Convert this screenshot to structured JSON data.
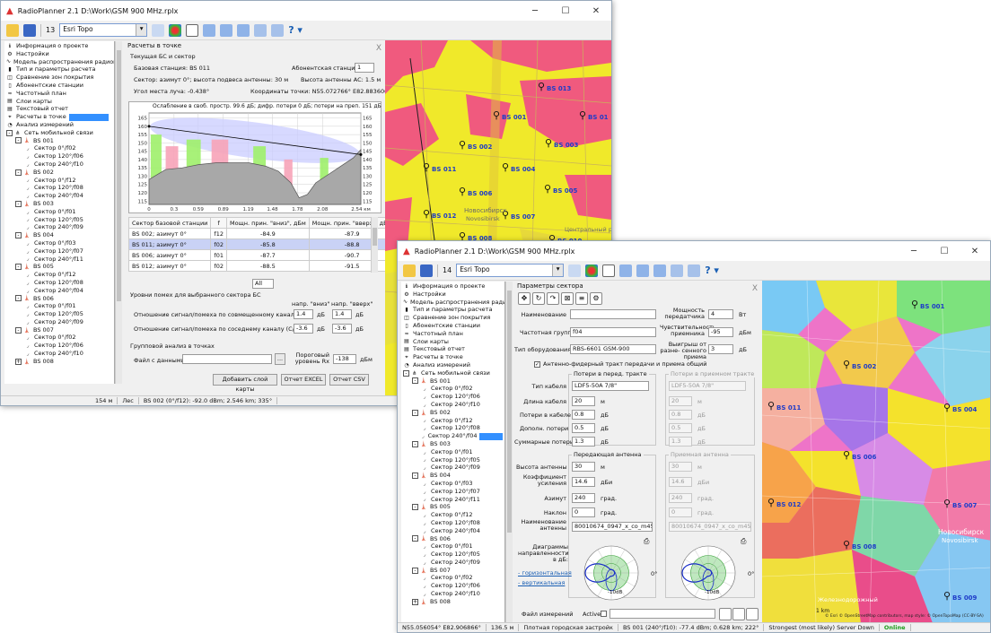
{
  "win1": {
    "title": "RadioPlanner 2.1 D:\\Work\\GSM 900 MHz.rplx",
    "zoom": "13",
    "basemap": "Esri Topo",
    "tree": [
      {
        "label": "Информация о проекте",
        "icon": "info-icon",
        "lvl": 0
      },
      {
        "label": "Настройки",
        "icon": "gear-icon",
        "lvl": 0
      },
      {
        "label": "Модель распространения радиово...",
        "icon": "propagation-model-icon",
        "lvl": 0
      },
      {
        "label": "Тип и параметры расчета",
        "icon": "bar-chart-icon",
        "lvl": 0
      },
      {
        "label": "Сравнение зон покрытия",
        "icon": "compare-icon",
        "lvl": 0
      },
      {
        "label": "Абонентские станции",
        "icon": "phone-icon",
        "lvl": 0
      },
      {
        "label": "Частотный план",
        "icon": "frequency-icon",
        "lvl": 0
      },
      {
        "label": "Слои карты",
        "icon": "layers-icon",
        "lvl": 0
      },
      {
        "label": "Текстовый отчет",
        "icon": "report-icon",
        "lvl": 0
      },
      {
        "label": "Расчеты в точке",
        "icon": "point-calc-icon",
        "lvl": 0,
        "sel": true
      },
      {
        "label": "Анализ измерений",
        "icon": "measure-icon",
        "lvl": 0
      },
      {
        "label": "Сеть мобильной связи",
        "icon": "network-icon",
        "lvl": 0,
        "exp": "-"
      },
      {
        "label": "BS 001",
        "icon": "tower-icon",
        "lvl": 1,
        "exp": "-"
      },
      {
        "label": "Сектор 0°/f02",
        "icon": "sector-icon",
        "lvl": 2
      },
      {
        "label": "Сектор 120°/f06",
        "icon": "sector-icon",
        "lvl": 2
      },
      {
        "label": "Сектор 240°/f10",
        "icon": "sector-icon",
        "lvl": 2
      },
      {
        "label": "BS 002",
        "icon": "tower-icon",
        "lvl": 1,
        "exp": "-"
      },
      {
        "label": "Сектор 0°/f12",
        "icon": "sector-icon",
        "lvl": 2
      },
      {
        "label": "Сектор 120°/f08",
        "icon": "sector-icon",
        "lvl": 2
      },
      {
        "label": "Сектор 240°/f04",
        "icon": "sector-icon",
        "lvl": 2
      },
      {
        "label": "BS 003",
        "icon": "tower-icon",
        "lvl": 1,
        "exp": "-"
      },
      {
        "label": "Сектор 0°/f01",
        "icon": "sector-icon",
        "lvl": 2
      },
      {
        "label": "Сектор 120°/f05",
        "icon": "sector-icon",
        "lvl": 2
      },
      {
        "label": "Сектор 240°/f09",
        "icon": "sector-icon",
        "lvl": 2
      },
      {
        "label": "BS 004",
        "icon": "tower-icon",
        "lvl": 1,
        "exp": "-"
      },
      {
        "label": "Сектор 0°/f03",
        "icon": "sector-icon",
        "lvl": 2
      },
      {
        "label": "Сектор 120°/f07",
        "icon": "sector-icon",
        "lvl": 2
      },
      {
        "label": "Сектор 240°/f11",
        "icon": "sector-icon",
        "lvl": 2
      },
      {
        "label": "BS 005",
        "icon": "tower-icon",
        "lvl": 1,
        "exp": "-"
      },
      {
        "label": "Сектор 0°/f12",
        "icon": "sector-icon",
        "lvl": 2
      },
      {
        "label": "Сектор 120°/f08",
        "icon": "sector-icon",
        "lvl": 2
      },
      {
        "label": "Сектор 240°/f04",
        "icon": "sector-icon",
        "lvl": 2
      },
      {
        "label": "BS 006",
        "icon": "tower-icon",
        "lvl": 1,
        "exp": "-"
      },
      {
        "label": "Сектор 0°/f01",
        "icon": "sector-icon",
        "lvl": 2
      },
      {
        "label": "Сектор 120°/f05",
        "icon": "sector-icon",
        "lvl": 2
      },
      {
        "label": "Сектор 240°/f09",
        "icon": "sector-icon",
        "lvl": 2
      },
      {
        "label": "BS 007",
        "icon": "tower-icon",
        "lvl": 1,
        "exp": "-"
      },
      {
        "label": "Сектор 0°/f02",
        "icon": "sector-icon",
        "lvl": 2
      },
      {
        "label": "Сектор 120°/f06",
        "icon": "sector-icon",
        "lvl": 2
      },
      {
        "label": "Сектор 240°/f10",
        "icon": "sector-icon",
        "lvl": 2
      },
      {
        "label": "BS 008",
        "icon": "tower-icon",
        "lvl": 1,
        "exp": "+"
      }
    ],
    "panel": {
      "header": "Расчеты в точке",
      "group_title": "Текущая БС и сектор",
      "base_station": "Базовая станция: BS 011",
      "subscriber_label": "Абонентская станция:",
      "subscriber_value": "1",
      "sector": "Сектор: азимут 0°; высота подвеса антенны: 30 м",
      "antenna_height_as": "Высота антенны АС: 1.5 м",
      "beam_angle": "Угол места луча: -0.438°",
      "coords": "Координаты точки: N55.072766° E82.883606°",
      "profile_caption": "Ослабление в своб. простр. 99.6 дБ; дифр. потери 0 дБ; потери на преп. 151 дБ",
      "table_headers": [
        "Сектор базовой станции",
        "f",
        "Мощн. прин. \"вниз\", дБм",
        "Мощн. прин. \"вверх\", дБм"
      ],
      "table_rows": [
        [
          "BS 002; азимут 0°",
          "f12",
          "-84.9",
          "-87.9"
        ],
        [
          "BS 011; азимут 0°",
          "f02",
          "-85.8",
          "-88.8"
        ],
        [
          "BS 006; азимут 0°",
          "f01",
          "-87.7",
          "-90.7"
        ],
        [
          "BS 012; азимут 0°",
          "f02",
          "-88.5",
          "-91.5"
        ]
      ],
      "filter": "All",
      "interf_title": "Уровни помех для выбранного сектора БС",
      "col_down": "напр. \"вниз\"",
      "col_up": "напр. \"вверх\"",
      "ci_label": "Отношение сигнал/помеха по совмещенному каналу (C/I)",
      "ci_down": "1.4",
      "ci_up": "1.4",
      "ca_label": "Отношение сигнал/помеха по соседнему каналу (C/A)",
      "ca_down": "-3.6",
      "ca_up": "-3.6",
      "unit_db": "дБ",
      "group_analysis": "Групповой анализ в точках",
      "file_label": "Файл с данными",
      "browse": "...",
      "threshold_label": "Пороговый уровень Rx",
      "threshold_value": "-138",
      "unit_dbm": "дБм",
      "btn_add_layer": "Добавить слой карты",
      "btn_excel": "Отчет EXCEL",
      "btn_csv": "Отчет CSV"
    },
    "status": [
      "154 м",
      "Лес",
      "BS 002 (0°/f12): -92.0 dBm; 2.546 km; 335°"
    ],
    "map_labels": [
      "BS 013",
      "BS 001",
      "BS 01",
      "BS 002",
      "BS 003",
      "BS 011",
      "BS 004",
      "BS 006",
      "BS 005",
      "BS 012",
      "BS 007",
      "BS 008",
      "BS 010",
      "Новосибирск",
      "Novosibirsk",
      "Центральный р"
    ]
  },
  "chart_data": {
    "type": "area",
    "title": "Ослабление в своб. простр. 99.6 дБ; дифр. потери 0 дБ; потери на преп. 151 дБ",
    "xlabel": "км",
    "x_ticks": [
      "0",
      "0.3",
      "0.59",
      "0.89",
      "1.19",
      "1.48",
      "1.78",
      "2.08",
      "2.54 км"
    ],
    "y_ticks": [
      165,
      160,
      155,
      150,
      145,
      140,
      135,
      130,
      125,
      120,
      115
    ],
    "ylim": [
      113,
      168
    ],
    "xlim": [
      0,
      2.54
    ],
    "terrain": [
      [
        0,
        128
      ],
      [
        0.2,
        134
      ],
      [
        0.4,
        135
      ],
      [
        0.6,
        137
      ],
      [
        0.8,
        138
      ],
      [
        1.0,
        138
      ],
      [
        1.2,
        138
      ],
      [
        1.4,
        136
      ],
      [
        1.55,
        133
      ],
      [
        1.7,
        126
      ],
      [
        1.8,
        117
      ],
      [
        1.9,
        119
      ],
      [
        2.0,
        126
      ],
      [
        2.15,
        131
      ],
      [
        2.3,
        136
      ],
      [
        2.45,
        141
      ],
      [
        2.54,
        146
      ]
    ],
    "clutter": [
      [
        0.02,
        0.15,
        155
      ],
      [
        0.2,
        0.35,
        148
      ],
      [
        0.45,
        0.62,
        152
      ],
      [
        0.75,
        0.95,
        152
      ],
      [
        1.25,
        1.4,
        148
      ],
      [
        1.62,
        1.72,
        140
      ],
      [
        2.05,
        2.15,
        141
      ]
    ],
    "los": [
      [
        0,
        160
      ],
      [
        2.54,
        143
      ]
    ],
    "colors": {
      "terrain": "#a8a8a8",
      "clutter": "#9ef06a",
      "clutter2": "#f7a3b8",
      "fresnel": "#c9ccff",
      "grid": "#d0d0d0"
    }
  },
  "win2": {
    "title": "RadioPlanner 2.1 D:\\Work\\GSM 900 MHz.rplx",
    "zoom": "14",
    "basemap": "Esri Topo",
    "tree": [
      {
        "label": "Информация о проекте",
        "icon": "info-icon",
        "lvl": 0
      },
      {
        "label": "Настройки",
        "icon": "gear-icon",
        "lvl": 0
      },
      {
        "label": "Модель распространения радиово...",
        "icon": "propagation-model-icon",
        "lvl": 0
      },
      {
        "label": "Тип и параметры расчета",
        "icon": "bar-chart-icon",
        "lvl": 0
      },
      {
        "label": "Сравнение зон покрытия",
        "icon": "compare-icon",
        "lvl": 0
      },
      {
        "label": "Абонентские станции",
        "icon": "phone-icon",
        "lvl": 0
      },
      {
        "label": "Частотный план",
        "icon": "frequency-icon",
        "lvl": 0
      },
      {
        "label": "Слои карты",
        "icon": "layers-icon",
        "lvl": 0
      },
      {
        "label": "Текстовый отчет",
        "icon": "report-icon",
        "lvl": 0
      },
      {
        "label": "Расчеты в точке",
        "icon": "point-calc-icon",
        "lvl": 0
      },
      {
        "label": "Анализ измерений",
        "icon": "measure-icon",
        "lvl": 0
      },
      {
        "label": "Сеть мобильной связи",
        "icon": "network-icon",
        "lvl": 0,
        "exp": "-"
      },
      {
        "label": "BS 001",
        "icon": "tower-icon",
        "lvl": 1,
        "exp": "-"
      },
      {
        "label": "Сектор 0°/f02",
        "icon": "sector-icon",
        "lvl": 2
      },
      {
        "label": "Сектор 120°/f06",
        "icon": "sector-icon",
        "lvl": 2
      },
      {
        "label": "Сектор 240°/f10",
        "icon": "sector-icon",
        "lvl": 2
      },
      {
        "label": "BS 002",
        "icon": "tower-icon",
        "lvl": 1,
        "exp": "-"
      },
      {
        "label": "Сектор 0°/f12",
        "icon": "sector-icon",
        "lvl": 2
      },
      {
        "label": "Сектор 120°/f08",
        "icon": "sector-icon",
        "lvl": 2
      },
      {
        "label": "Сектор 240°/f04",
        "icon": "sector-icon",
        "lvl": 2,
        "sel": true
      },
      {
        "label": "BS 003",
        "icon": "tower-icon",
        "lvl": 1,
        "exp": "-"
      },
      {
        "label": "Сектор 0°/f01",
        "icon": "sector-icon",
        "lvl": 2
      },
      {
        "label": "Сектор 120°/f05",
        "icon": "sector-icon",
        "lvl": 2
      },
      {
        "label": "Сектор 240°/f09",
        "icon": "sector-icon",
        "lvl": 2
      },
      {
        "label": "BS 004",
        "icon": "tower-icon",
        "lvl": 1,
        "exp": "-"
      },
      {
        "label": "Сектор 0°/f03",
        "icon": "sector-icon",
        "lvl": 2
      },
      {
        "label": "Сектор 120°/f07",
        "icon": "sector-icon",
        "lvl": 2
      },
      {
        "label": "Сектор 240°/f11",
        "icon": "sector-icon",
        "lvl": 2
      },
      {
        "label": "BS 005",
        "icon": "tower-icon",
        "lvl": 1,
        "exp": "-"
      },
      {
        "label": "Сектор 0°/f12",
        "icon": "sector-icon",
        "lvl": 2
      },
      {
        "label": "Сектор 120°/f08",
        "icon": "sector-icon",
        "lvl": 2
      },
      {
        "label": "Сектор 240°/f04",
        "icon": "sector-icon",
        "lvl": 2
      },
      {
        "label": "BS 006",
        "icon": "tower-icon",
        "lvl": 1,
        "exp": "-"
      },
      {
        "label": "Сектор 0°/f01",
        "icon": "sector-icon",
        "lvl": 2
      },
      {
        "label": "Сектор 120°/f05",
        "icon": "sector-icon",
        "lvl": 2
      },
      {
        "label": "Сектор 240°/f09",
        "icon": "sector-icon",
        "lvl": 2
      },
      {
        "label": "BS 007",
        "icon": "tower-icon",
        "lvl": 1,
        "exp": "-"
      },
      {
        "label": "Сектор 0°/f02",
        "icon": "sector-icon",
        "lvl": 2
      },
      {
        "label": "Сектор 120°/f06",
        "icon": "sector-icon",
        "lvl": 2
      },
      {
        "label": "Сектор 240°/f10",
        "icon": "sector-icon",
        "lvl": 2
      },
      {
        "label": "BS 008",
        "icon": "tower-icon",
        "lvl": 1,
        "exp": "+"
      }
    ],
    "panel": {
      "header": "Параметры сектора",
      "name_label": "Наименование",
      "name_value": "",
      "power_label": "Мощность передатчика",
      "power_value": "4",
      "power_unit": "Вт",
      "freq_group_label": "Частотная группа",
      "freq_group_value": "f04",
      "sens_label": "Чувствительность приемника",
      "sens_value": "-95",
      "sens_unit": "дБм",
      "equip_label": "Тип оборудования",
      "equip_value": "RBS-6601 GSM-900",
      "gain_rx_label": "Выигрыш от разне- сенного приема",
      "gain_rx_value": "3",
      "gain_rx_unit": "дБ",
      "common_path_label": "Антенно-фидерный тракт передачи и приема общий",
      "tx_group": "Потери в перед. тракте",
      "rx_group": "Потери в приемном тракте",
      "cable_type_label": "Тип кабеля",
      "cable_type": "LDF5-50A  7/8\"",
      "cable_len_label": "Длина кабеля",
      "cable_len": "20",
      "unit_m": "м",
      "cable_loss_label": "Потери в кабеле",
      "cable_loss": "0.8",
      "unit_db": "дБ",
      "extra_loss_label": "Дополн. потери",
      "extra_loss": "0.5",
      "total_loss_label": "Суммарные потери",
      "total_loss": "1.3",
      "tx_ant_group": "Передающая антенна",
      "rx_ant_group": "Приемная антенна",
      "ant_height_label": "Высота антенны",
      "ant_height": "30",
      "gain_label": "Коэффициент усиления",
      "gain": "14.6",
      "unit_dbi": "дБи",
      "azimuth_label": "Азимут",
      "azimuth": "240",
      "unit_deg": "град.",
      "tilt_label": "Наклон",
      "tilt": "0",
      "ant_name_label": "Наименование антенны",
      "ant_name": "80010674_0947_x_co_m45_0",
      "diag_label": "Диаграммы направленности в дБ:",
      "link_h": "- горизонтальная",
      "link_v": "- вертикальная",
      "polar_zero": "0°",
      "polar_db": "-10dB",
      "meas_label": "Файл измерений",
      "active_label": "Active"
    },
    "status": [
      "N55.056054° E82.906866°",
      "136.5 м",
      "Плотная городская застройк",
      "BS 001 (240°/f10): -77.4 dBm; 0.628 km; 222°",
      "Strongest (most likely) Server Down",
      "Online"
    ],
    "map_labels": [
      "BS 001",
      "BS 002",
      "BS 011",
      "BS 004",
      "BS 006",
      "BS 012",
      "BS 007",
      "BS 008",
      "BS 009",
      "Новосибирск",
      "Novosibirsk",
      "Железнодорожный",
      "1 km",
      "© Esri © OpenStreetMap contributors, map style: © OpenTopoMap (CC-BY-SA)"
    ]
  }
}
